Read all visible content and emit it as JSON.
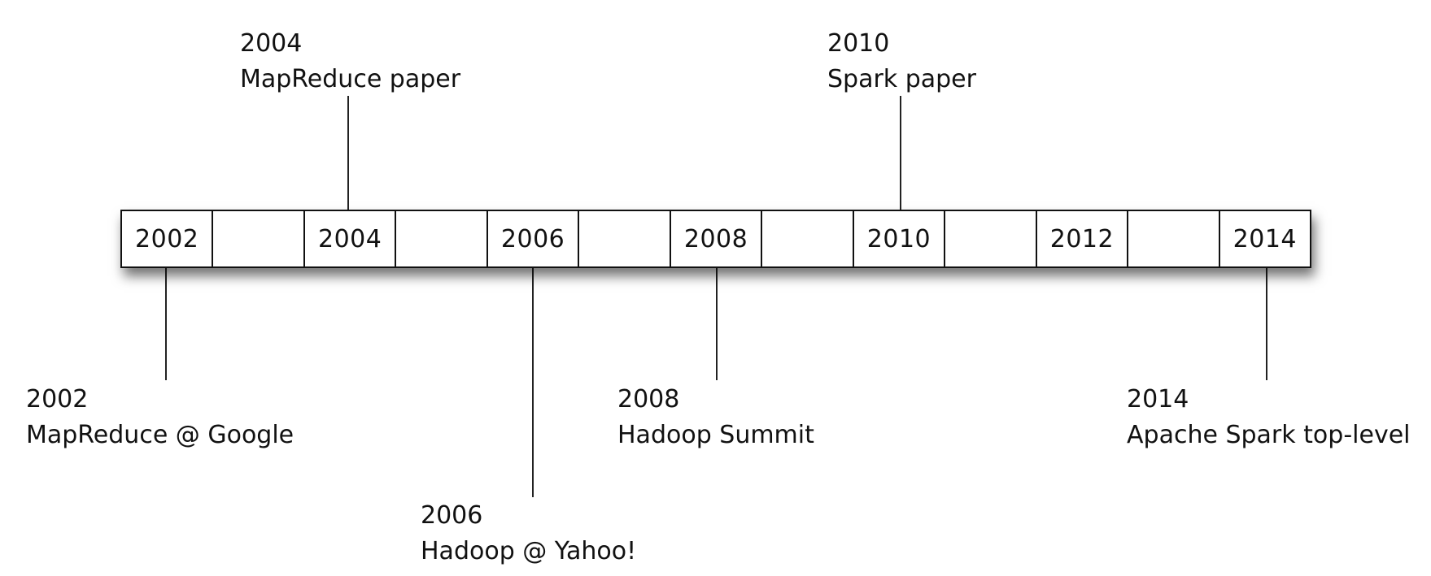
{
  "timeline": {
    "years": [
      "2002",
      "",
      "2004",
      "",
      "2006",
      "",
      "2008",
      "",
      "2010",
      "",
      "2012",
      "",
      "2014"
    ],
    "events": [
      {
        "year": "2004",
        "description": "MapReduce paper"
      },
      {
        "year": "2010",
        "description": "Spark paper"
      },
      {
        "year": "2002",
        "description": "MapReduce @ Google"
      },
      {
        "year": "2006",
        "description": "Hadoop @ Yahoo!"
      },
      {
        "year": "2008",
        "description": "Hadoop Summit"
      },
      {
        "year": "2014",
        "description": "Apache Spark top-level"
      }
    ]
  }
}
